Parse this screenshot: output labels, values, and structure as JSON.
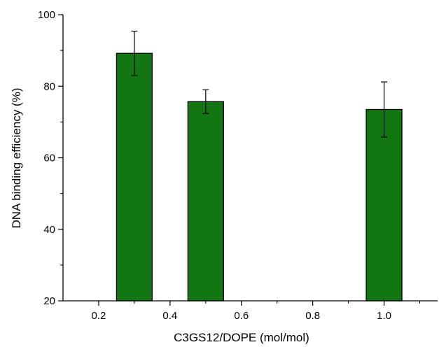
{
  "chart_data": {
    "type": "bar",
    "x": [
      0.3,
      0.5,
      1.0
    ],
    "values": [
      89.2,
      75.7,
      73.5
    ],
    "error": [
      6.2,
      3.3,
      7.7
    ],
    "bar_width": 0.1,
    "bar_color": "#127612",
    "title": "",
    "xlabel": "C3GS12/DOPE (mol/mol)",
    "ylabel": "DNA binding efficiency (%)",
    "xlim": [
      0.1,
      1.15
    ],
    "ylim": [
      20,
      100
    ],
    "xticks": [
      0.2,
      0.4,
      0.6,
      0.8,
      1.0
    ],
    "xtick_labels": [
      "0.2",
      "0.4",
      "0.6",
      "0.8",
      "1.0"
    ],
    "yticks": [
      20,
      40,
      60,
      80,
      100
    ],
    "ytick_labels": [
      "20",
      "40",
      "60",
      "80",
      "100"
    ],
    "grid": false,
    "legend": "none"
  }
}
